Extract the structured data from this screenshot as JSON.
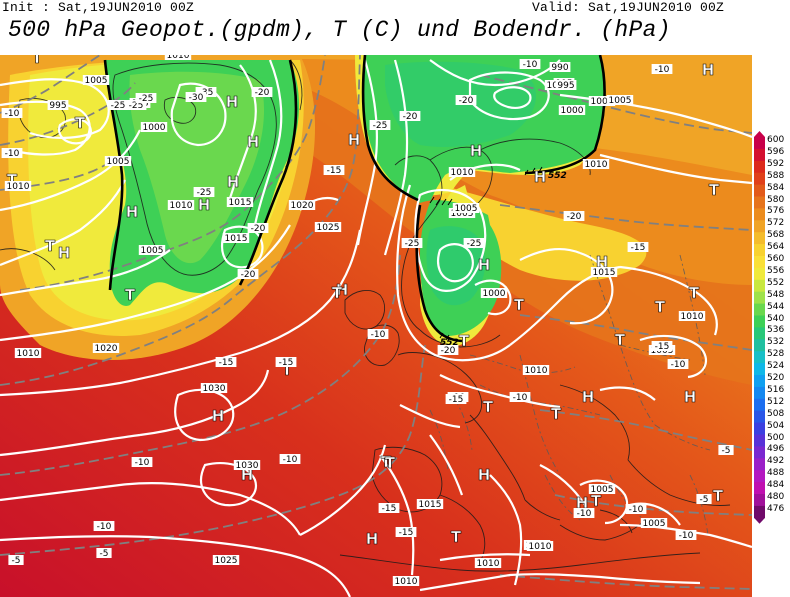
{
  "header": {
    "init": "Init : Sat,19JUN2010 00Z",
    "valid": "Valid: Sat,19JUN2010 00Z",
    "title": "500 hPa Geopot.(gpdm), T (C) und Bodendr. (hPa)"
  },
  "colorbar": {
    "ticks": [
      "600",
      "596",
      "592",
      "588",
      "584",
      "580",
      "576",
      "572",
      "568",
      "564",
      "560",
      "556",
      "552",
      "548",
      "544",
      "540",
      "536",
      "532",
      "528",
      "524",
      "520",
      "516",
      "512",
      "508",
      "504",
      "500",
      "496",
      "492",
      "488",
      "484",
      "480",
      "476"
    ],
    "colors": [
      "#c8004a",
      "#d41030",
      "#dc2a1c",
      "#e0401a",
      "#e25a1a",
      "#e6741c",
      "#ec8c1e",
      "#f0a426",
      "#f4bc2c",
      "#f8d230",
      "#fae038",
      "#f0ea3c",
      "#c8e840",
      "#9ee24a",
      "#6ad84e",
      "#3ed056",
      "#28c878",
      "#20c0a0",
      "#18c0c8",
      "#10b8e8",
      "#10a0f0",
      "#1488f0",
      "#1c6ef0",
      "#2a56e8",
      "#3c40e0",
      "#5832d8",
      "#7a28d0",
      "#9a20c8",
      "#b418c0",
      "#c010b0",
      "#a0109a",
      "#700a6a"
    ]
  },
  "map": {
    "pressure_system_labels": [
      "H",
      "H",
      "H",
      "H",
      "H",
      "H",
      "H",
      "H",
      "H",
      "H",
      "H",
      "H",
      "H",
      "H",
      "H",
      "H",
      "H",
      "H",
      "H",
      "H",
      "T",
      "T",
      "T",
      "T",
      "T",
      "T",
      "T",
      "T",
      "T",
      "T",
      "T",
      "T",
      "T",
      "T",
      "T",
      "T",
      "T",
      "T",
      "T",
      "T"
    ],
    "pressure_isobar_labels": [
      "1010",
      "995",
      "1005",
      "995",
      "1000",
      "1005",
      "1010",
      "1010",
      "1015",
      "1020",
      "1025",
      "1005",
      "1015",
      "1010",
      "1020",
      "1030",
      "1030",
      "1025",
      "1015",
      "1010",
      "1010",
      "1005",
      "1005",
      "1000",
      "995",
      "1000",
      "1005",
      "1010",
      "1005",
      "1010",
      "1015",
      "1010",
      "1005",
      "1010",
      "1010",
      "1010",
      "1000",
      "990",
      "995",
      "1005",
      "1005"
    ],
    "temperature_labels": [
      "-10",
      "-10",
      "-25",
      "-35",
      "-30",
      "-25",
      "-25",
      "-20",
      "-25",
      "-20",
      "-20",
      "-15",
      "-25",
      "-20",
      "-10",
      "-15",
      "-15",
      "-10",
      "-10",
      "-15",
      "-15",
      "-10",
      "-20",
      "-25",
      "-25",
      "-20",
      "-15",
      "-15",
      "-10",
      "-10",
      "-5",
      "-5",
      "-10",
      "-5",
      "-20",
      "-10",
      "-10",
      "-15",
      "-10",
      "-10",
      "-10",
      "-5"
    ],
    "geopotential_labels": [
      "552",
      "552"
    ]
  }
}
